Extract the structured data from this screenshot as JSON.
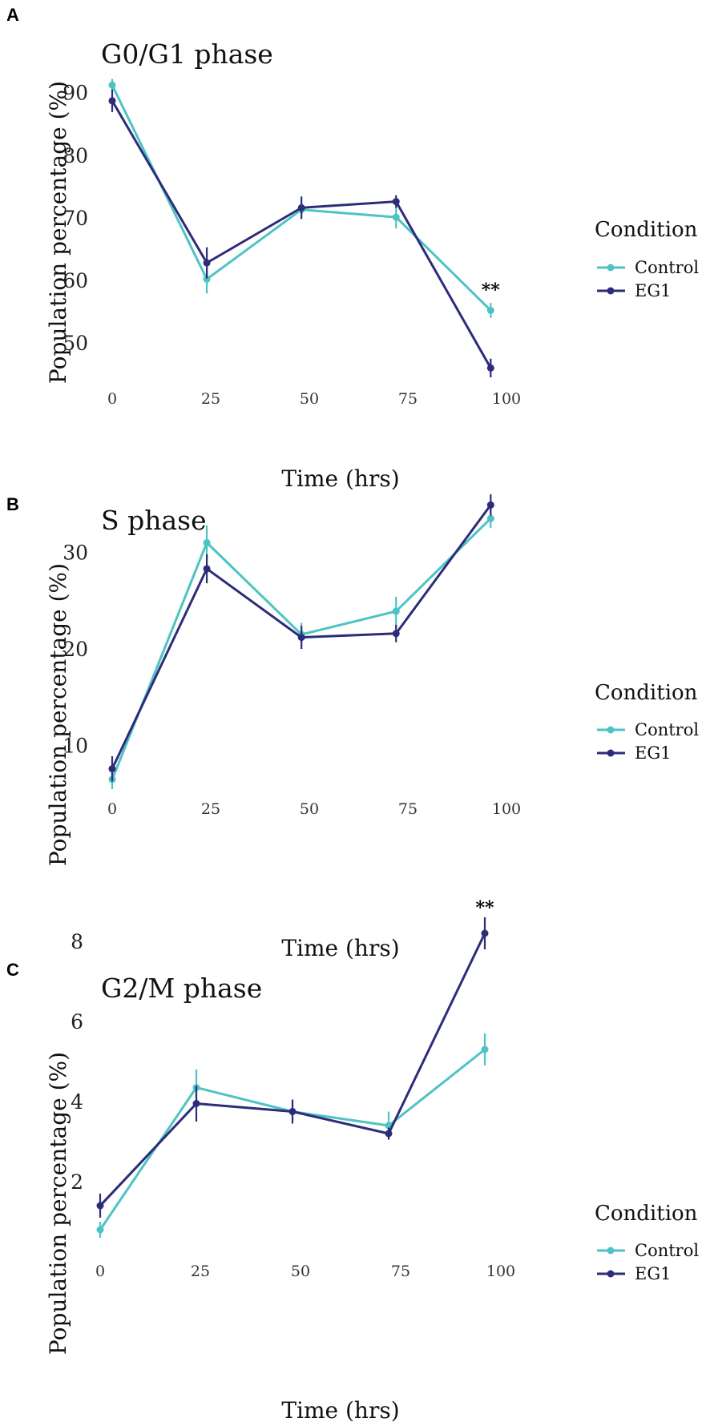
{
  "chart_data": [
    {
      "type": "line",
      "panel": "A",
      "title": "G0/G1 phase",
      "xlabel": "Time (hrs)",
      "ylabel": "Population percentage (%)",
      "xticks": [
        0,
        25,
        50,
        75,
        100
      ],
      "yticks": [
        50,
        60,
        70,
        80,
        90
      ],
      "xlim": [
        0,
        100
      ],
      "ylim": [
        44,
        92
      ],
      "legend_title": "Condition",
      "x": [
        0,
        24,
        48,
        72,
        96
      ],
      "series": [
        {
          "name": "Control",
          "color": "#4ec3c4",
          "values": [
            91.2,
            60.2,
            71.3,
            70.1,
            55.2
          ],
          "errors": [
            1.0,
            2.3,
            1.2,
            1.8,
            1.2
          ]
        },
        {
          "name": "EG1",
          "color": "#2c2c7a",
          "values": [
            88.7,
            62.8,
            71.6,
            72.6,
            46.0
          ],
          "errors": [
            1.8,
            2.5,
            1.8,
            1.0,
            1.5
          ]
        }
      ],
      "annotations": [
        {
          "text": "**",
          "x": 96,
          "y": 58.5
        }
      ]
    },
    {
      "type": "line",
      "panel": "B",
      "title": "S phase",
      "xlabel": "Time (hrs)",
      "ylabel": "Population percentage (%)",
      "xticks": [
        0,
        25,
        50,
        75,
        100
      ],
      "yticks": [
        10,
        20,
        30
      ],
      "xlim": [
        0,
        100
      ],
      "ylim": [
        5.5,
        37
      ],
      "legend_title": "Condition",
      "x": [
        0,
        24,
        48,
        72,
        96
      ],
      "series": [
        {
          "name": "Control",
          "color": "#4ec3c4",
          "values": [
            6.5,
            31.0,
            21.5,
            23.9,
            33.5
          ],
          "errors": [
            1.0,
            1.8,
            1.2,
            1.5,
            1.0
          ]
        },
        {
          "name": "EG1",
          "color": "#2c2c7a",
          "values": [
            7.6,
            28.3,
            21.2,
            21.6,
            34.9
          ],
          "errors": [
            1.3,
            1.5,
            1.2,
            0.9,
            1.1
          ]
        }
      ],
      "annotations": []
    },
    {
      "type": "line",
      "panel": "C",
      "title": "G2/M phase",
      "xlabel": "Time (hrs)",
      "ylabel": "Population percentage (%)",
      "xticks": [
        0,
        25,
        50,
        75,
        100
      ],
      "yticks": [
        2,
        4,
        6,
        8
      ],
      "xlim": [
        0,
        100
      ],
      "ylim": [
        0.3,
        9.1
      ],
      "legend_title": "Condition",
      "x": [
        0,
        24,
        48,
        72,
        96
      ],
      "series": [
        {
          "name": "Control",
          "color": "#4ec3c4",
          "values": [
            0.8,
            4.35,
            3.75,
            3.4,
            5.3
          ],
          "errors": [
            0.2,
            0.45,
            0.25,
            0.35,
            0.4
          ]
        },
        {
          "name": "EG1",
          "color": "#2c2c7a",
          "values": [
            1.4,
            3.95,
            3.75,
            3.2,
            8.2
          ],
          "errors": [
            0.3,
            0.45,
            0.3,
            0.15,
            0.4
          ]
        }
      ],
      "annotations": [
        {
          "text": "**",
          "x": 96,
          "y": 8.85
        }
      ]
    }
  ]
}
